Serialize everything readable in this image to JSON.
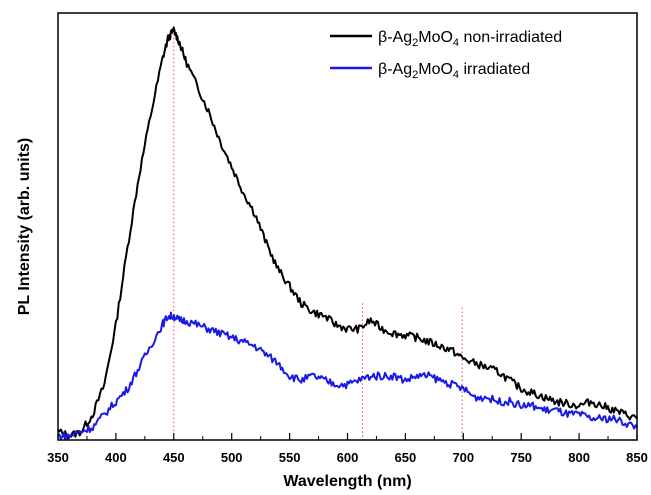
{
  "chart_data": {
    "type": "line",
    "title": "",
    "xlabel": "Wavelength (nm)",
    "ylabel": "PL Intensity (arb. units)",
    "xlim": [
      350,
      850
    ],
    "ylim": [
      0,
      1
    ],
    "x_ticks": [
      "350",
      "400",
      "450",
      "500",
      "550",
      "600",
      "650",
      "700",
      "750",
      "800",
      "850"
    ],
    "y_ticks_shown": false,
    "grid": false,
    "legend_position": "top-right",
    "reference_lines": {
      "color": "#e05050",
      "style": "dotted",
      "x": [
        450,
        613,
        699
      ]
    },
    "series": [
      {
        "name": "β-Ag₂MoO₄ non-irradiated",
        "legend_parts": {
          "prefix": "β-Ag",
          "sub1": "2",
          "mid": "MoO",
          "sub2": "4",
          "suffix": " non-irradiated"
        },
        "color": "#000000",
        "x": [
          350,
          360,
          370,
          380,
          390,
          400,
          410,
          420,
          430,
          440,
          445,
          450,
          455,
          460,
          470,
          480,
          490,
          500,
          510,
          520,
          530,
          540,
          550,
          560,
          570,
          580,
          590,
          600,
          610,
          620,
          630,
          640,
          650,
          660,
          670,
          680,
          690,
          700,
          710,
          720,
          730,
          740,
          750,
          760,
          770,
          780,
          790,
          800,
          810,
          820,
          830,
          840,
          850
        ],
        "values": [
          0.02,
          0.01,
          0.02,
          0.06,
          0.13,
          0.27,
          0.45,
          0.62,
          0.76,
          0.89,
          0.94,
          0.96,
          0.93,
          0.89,
          0.83,
          0.77,
          0.7,
          0.64,
          0.58,
          0.53,
          0.46,
          0.4,
          0.36,
          0.32,
          0.3,
          0.29,
          0.27,
          0.26,
          0.26,
          0.28,
          0.26,
          0.25,
          0.245,
          0.24,
          0.23,
          0.22,
          0.21,
          0.19,
          0.18,
          0.17,
          0.16,
          0.14,
          0.12,
          0.11,
          0.1,
          0.09,
          0.085,
          0.08,
          0.09,
          0.08,
          0.07,
          0.06,
          0.05
        ]
      },
      {
        "name": "β-Ag₂MoO₄ irradiated",
        "legend_parts": {
          "prefix": "β-Ag",
          "sub1": "2",
          "mid": "MoO",
          "sub2": "4",
          "suffix": " irradiated"
        },
        "color": "#1a1ae6",
        "x": [
          350,
          360,
          370,
          380,
          390,
          400,
          410,
          420,
          430,
          440,
          445,
          450,
          455,
          460,
          470,
          480,
          490,
          500,
          510,
          520,
          530,
          540,
          550,
          560,
          570,
          580,
          590,
          600,
          610,
          620,
          630,
          640,
          650,
          660,
          670,
          680,
          690,
          700,
          710,
          720,
          730,
          740,
          750,
          760,
          770,
          780,
          790,
          800,
          810,
          820,
          830,
          840,
          850
        ],
        "values": [
          0.01,
          0.01,
          0.02,
          0.03,
          0.06,
          0.09,
          0.12,
          0.17,
          0.22,
          0.27,
          0.29,
          0.29,
          0.28,
          0.28,
          0.27,
          0.26,
          0.25,
          0.24,
          0.23,
          0.22,
          0.2,
          0.18,
          0.15,
          0.14,
          0.15,
          0.14,
          0.13,
          0.13,
          0.14,
          0.15,
          0.15,
          0.15,
          0.14,
          0.15,
          0.15,
          0.14,
          0.13,
          0.12,
          0.1,
          0.1,
          0.09,
          0.09,
          0.08,
          0.08,
          0.07,
          0.07,
          0.06,
          0.06,
          0.05,
          0.05,
          0.05,
          0.04,
          0.03
        ]
      }
    ]
  }
}
